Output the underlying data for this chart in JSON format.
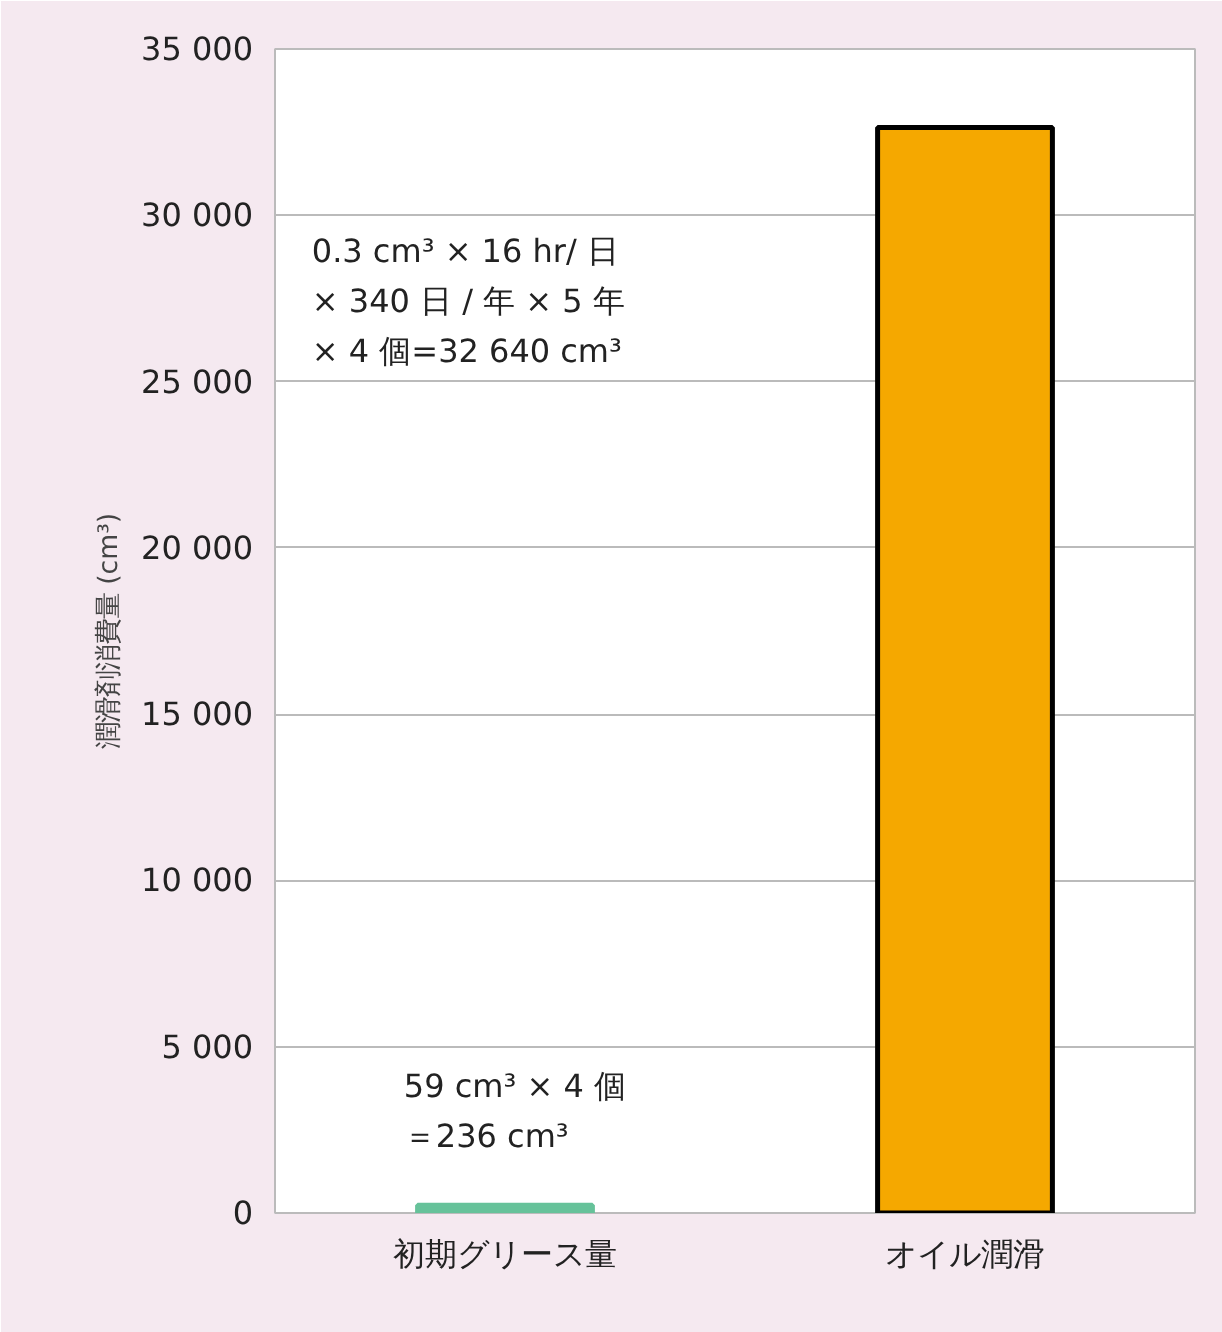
{
  "chart_data": {
    "type": "bar",
    "ylabel": "潤滑剤消費量 (cm³)",
    "categories": [
      "初期グリース量",
      "オイル潤滑"
    ],
    "values": [
      236,
      32640
    ],
    "colors": [
      "#66c29a",
      "#f5a800"
    ],
    "ylim": [
      0,
      35000
    ],
    "yticks": [
      0,
      {
        "value": 5000,
        "label": "5 000"
      },
      {
        "value": 10000,
        "label": "10 000"
      },
      {
        "value": 15000,
        "label": "15 000"
      },
      {
        "value": 20000,
        "label": "20 000"
      },
      {
        "value": 25000,
        "label": "25 000"
      },
      {
        "value": 30000,
        "label": "30 000"
      },
      {
        "value": 35000,
        "label": "35 000"
      }
    ],
    "grid": "y",
    "annotations": [
      "0.3 cm³ × 16 hr/ 日",
      "× 340 日 / 年 × 5 年",
      "× 4 個=32 640 cm³",
      "59 cm³ × 4 個",
      "＝236 cm³"
    ]
  }
}
